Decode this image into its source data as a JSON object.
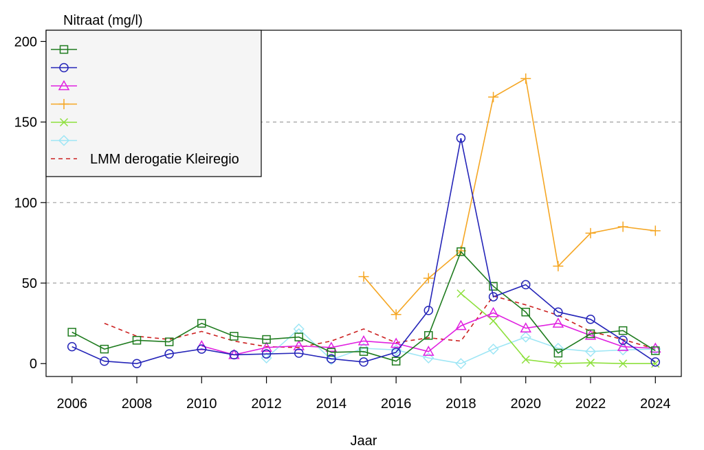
{
  "chart_data": {
    "type": "line",
    "ylabel": "Nitraat (mg/l)",
    "xlabel": "Jaar",
    "xlim": [
      2005.2,
      2024.8
    ],
    "ylim": [
      -8,
      207
    ],
    "yticks": [
      0,
      50,
      100,
      150,
      200
    ],
    "xticks": [
      2006,
      2008,
      2010,
      2012,
      2014,
      2016,
      2018,
      2020,
      2022,
      2024
    ],
    "grid": {
      "horizontal_dashed_at": [
        50,
        100,
        150
      ]
    },
    "legend_position": "top-left",
    "series": [
      {
        "name": "",
        "color": "#1e7b1e",
        "marker": "square",
        "dash": false,
        "x": [
          2006,
          2007,
          2008,
          2009,
          2010,
          2011,
          2012,
          2013,
          2014,
          2015,
          2016,
          2017,
          2018,
          2019,
          2020,
          2021,
          2022,
          2023,
          2024
        ],
        "y": [
          19.5,
          9,
          14.5,
          13.5,
          25,
          17,
          15,
          16.5,
          7,
          7.5,
          1.5,
          17.5,
          69.5,
          48,
          32,
          6.5,
          18.5,
          20.5,
          8
        ]
      },
      {
        "name": "",
        "color": "#2424b8",
        "marker": "circle",
        "dash": false,
        "x": [
          2006,
          2007,
          2008,
          2009,
          2010,
          2011,
          2012,
          2013,
          2014,
          2015,
          2016,
          2017,
          2018,
          2019,
          2020,
          2021,
          2022,
          2023,
          2024
        ],
        "y": [
          10.5,
          1.5,
          0,
          6,
          9,
          5.5,
          6,
          6.5,
          3,
          1,
          7,
          33,
          140,
          41.5,
          49,
          32,
          27.5,
          14.5,
          1
        ]
      },
      {
        "name": "",
        "color": "#e020e0",
        "marker": "triangle",
        "dash": false,
        "x": [
          2010,
          2011,
          2012,
          2013,
          2014,
          2015,
          2016,
          2017,
          2018,
          2019,
          2020,
          2021,
          2022,
          2023,
          2024
        ],
        "y": [
          11,
          5.5,
          10,
          11,
          10,
          14,
          12.5,
          7.5,
          23.5,
          31.5,
          22,
          25,
          17.5,
          10.5,
          9.5
        ]
      },
      {
        "name": "",
        "color": "#f5a623",
        "marker": "plus",
        "dash": false,
        "x": [
          2015,
          2016,
          2017,
          2018,
          2019,
          2020,
          2021,
          2022,
          2023,
          2024
        ],
        "y": [
          54,
          30.5,
          53,
          70,
          165.5,
          177,
          60.5,
          81,
          85,
          82.5
        ]
      },
      {
        "name": "",
        "color": "#8de03c",
        "marker": "cross",
        "dash": false,
        "x": [
          2018,
          2019,
          2020,
          2021,
          2022,
          2023,
          2024
        ],
        "y": [
          43.5,
          26.5,
          2.5,
          0,
          0.5,
          0,
          0
        ]
      },
      {
        "name": "",
        "color": "#9ee6f5",
        "marker": "diamond",
        "dash": false,
        "x": [
          2012,
          2013,
          2014,
          2015,
          2016,
          2017,
          2018,
          2019,
          2020,
          2021,
          2022,
          2023,
          2024
        ],
        "y": [
          3.5,
          21.5,
          2.5,
          9.5,
          8.5,
          3.5,
          0,
          9,
          16.5,
          9.5,
          7.5,
          8.5,
          9
        ]
      },
      {
        "name": "LMM derogatie Kleiregio",
        "color": "#cc2020",
        "marker": "none",
        "dash": true,
        "x": [
          2007,
          2008,
          2009,
          2010,
          2011,
          2012,
          2013,
          2014,
          2015,
          2016,
          2017,
          2018,
          2019,
          2020,
          2021,
          2022,
          2023,
          2024
        ],
        "y": [
          25,
          17,
          15,
          20,
          14,
          10.5,
          10,
          14,
          21.5,
          13,
          16,
          14,
          42,
          36.5,
          30,
          20,
          15,
          9
        ]
      }
    ]
  }
}
